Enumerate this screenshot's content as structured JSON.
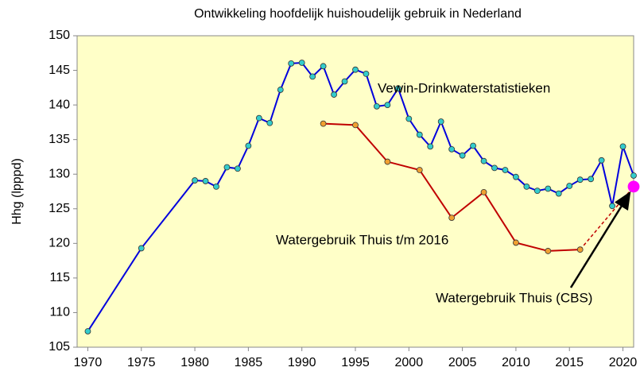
{
  "chart_data": {
    "type": "line",
    "title": "Ontwikkeling hoofdelijk huishoudelijk gebruik in Nederland",
    "y_label": "Hhg (lpppd)",
    "xlim": [
      1969,
      2021
    ],
    "xticks": [
      1970,
      1975,
      1980,
      1985,
      1990,
      1995,
      2000,
      2005,
      2010,
      2015,
      2020
    ],
    "ylim": [
      105,
      150
    ],
    "yticks": [
      105,
      110,
      115,
      120,
      125,
      130,
      135,
      140,
      145,
      150
    ],
    "grid": false,
    "series": [
      {
        "name": "Vewin-Drinkwaterstatistieken",
        "color": "#0000dd",
        "marker_color": "#33cccc",
        "x": [
          1970,
          1975,
          1980,
          1981,
          1982,
          1983,
          1984,
          1985,
          1986,
          1987,
          1988,
          1989,
          1990,
          1991,
          1992,
          1993,
          1994,
          1995,
          1996,
          1997,
          1998,
          1999,
          2000,
          2001,
          2002,
          2003,
          2004,
          2005,
          2006,
          2007,
          2008,
          2009,
          2010,
          2011,
          2012,
          2013,
          2014,
          2015,
          2016,
          2017,
          2018,
          2019,
          2020,
          2021
        ],
        "values": [
          107.3,
          119.3,
          129.1,
          129.0,
          128.2,
          131.0,
          130.8,
          134.1,
          138.1,
          137.4,
          142.2,
          146.0,
          146.1,
          144.1,
          145.6,
          141.5,
          143.4,
          145.1,
          144.5,
          139.8,
          140.0,
          142.4,
          138.0,
          135.7,
          134.0,
          137.6,
          133.6,
          132.7,
          134.1,
          131.9,
          130.9,
          130.6,
          129.6,
          128.2,
          127.6,
          127.9,
          127.2,
          128.3,
          129.2,
          129.3,
          132.0,
          125.4,
          134.0,
          129.8
        ]
      },
      {
        "name": "Watergebruik Thuis t/m 2016",
        "color": "#c00000",
        "marker_color": "#f0a030",
        "x": [
          1992,
          1995,
          1998,
          2001,
          2004,
          2007,
          2010,
          2013,
          2016
        ],
        "values": [
          137.3,
          137.1,
          131.8,
          130.6,
          123.7,
          127.4,
          120.1,
          118.9,
          119.1
        ]
      },
      {
        "name": "Watergebruik Thuis (CBS)",
        "color": "#ff00ff",
        "x": [
          2021
        ],
        "values": [
          128.2
        ]
      }
    ]
  }
}
